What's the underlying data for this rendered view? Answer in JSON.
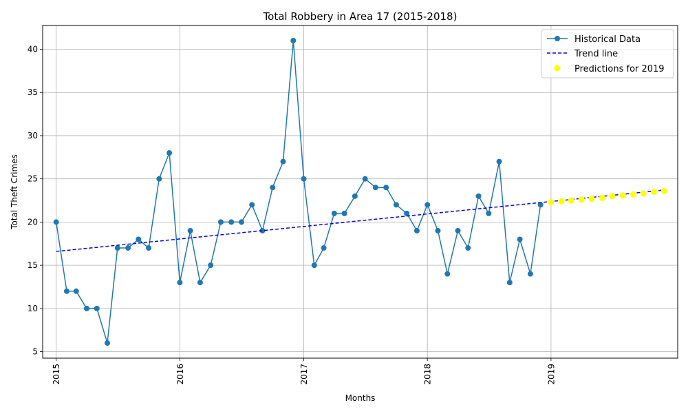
{
  "chart_data": {
    "type": "line",
    "title": "Total Robbery in Area 17 (2015-2018)",
    "xlabel": "Months",
    "ylabel": "Total Theft Crimes",
    "x_range": [
      "2014-11-22",
      "2020-01-10"
    ],
    "ylim": [
      4.25,
      42.75
    ],
    "y_ticks": [
      5,
      10,
      15,
      20,
      25,
      30,
      35,
      40
    ],
    "x_ticks": [
      {
        "date": "2015-01-01",
        "label": "2015"
      },
      {
        "date": "2016-01-01",
        "label": "2016"
      },
      {
        "date": "2017-01-01",
        "label": "2017"
      },
      {
        "date": "2018-01-01",
        "label": "2018"
      },
      {
        "date": "2019-01-01",
        "label": "2019"
      }
    ],
    "grid": true,
    "legend_position": "top-right",
    "series": [
      {
        "name": "Historical Data",
        "kind": "line-marker",
        "color": "#1f77b4",
        "x": [
          "2015-01",
          "2015-02",
          "2015-03",
          "2015-04",
          "2015-05",
          "2015-06",
          "2015-07",
          "2015-08",
          "2015-09",
          "2015-10",
          "2015-11",
          "2015-12",
          "2016-01",
          "2016-02",
          "2016-03",
          "2016-04",
          "2016-05",
          "2016-06",
          "2016-07",
          "2016-08",
          "2016-09",
          "2016-10",
          "2016-11",
          "2016-12",
          "2017-01",
          "2017-02",
          "2017-03",
          "2017-04",
          "2017-05",
          "2017-06",
          "2017-07",
          "2017-08",
          "2017-09",
          "2017-10",
          "2017-11",
          "2017-12",
          "2018-01",
          "2018-02",
          "2018-03",
          "2018-04",
          "2018-05",
          "2018-06",
          "2018-07",
          "2018-08",
          "2018-09",
          "2018-10",
          "2018-11",
          "2018-12"
        ],
        "values": [
          20,
          12,
          12,
          10,
          10,
          6,
          17,
          17,
          18,
          17,
          25,
          28,
          13,
          19,
          13,
          15,
          20,
          20,
          20,
          22,
          19,
          24,
          27,
          41,
          25,
          15,
          17,
          21,
          21,
          23,
          25,
          24,
          24,
          22,
          21,
          19,
          22,
          19,
          14,
          19,
          17,
          23,
          21,
          27,
          13,
          18,
          14,
          22
        ]
      },
      {
        "name": "Trend line",
        "kind": "dashed-line",
        "color": "#0000ff",
        "x": [
          "2015-01",
          "2019-12"
        ],
        "values": [
          16.6,
          23.7
        ]
      },
      {
        "name": "Predictions for 2019",
        "kind": "scatter",
        "color": "#ffff00",
        "x": [
          "2019-01",
          "2019-02",
          "2019-03",
          "2019-04",
          "2019-05",
          "2019-06",
          "2019-07",
          "2019-08",
          "2019-09",
          "2019-10",
          "2019-11",
          "2019-12"
        ],
        "values": [
          22.3,
          22.4,
          22.5,
          22.6,
          22.7,
          22.8,
          23.0,
          23.1,
          23.2,
          23.3,
          23.5,
          23.6
        ]
      }
    ]
  }
}
